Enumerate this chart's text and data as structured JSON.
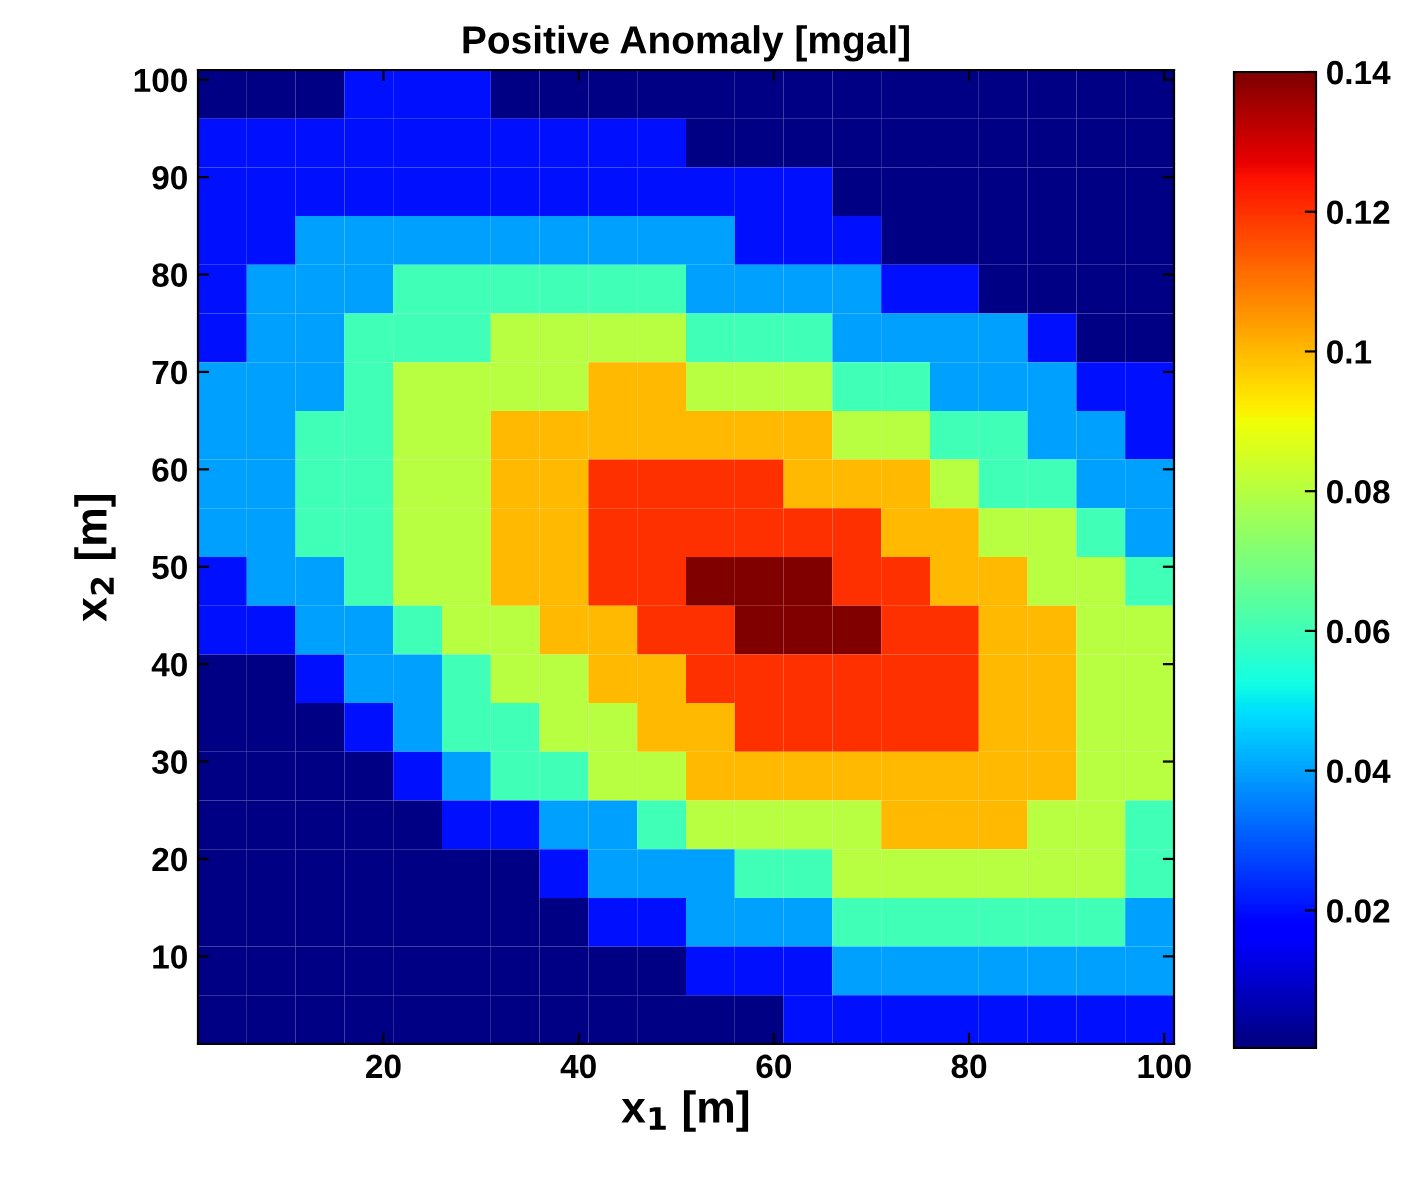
{
  "chart_data": {
    "type": "heatmap",
    "title": "Positive Anomaly [mgal]",
    "xlabel": "x$_{1}$ [m]",
    "ylabel": "x$_{2}$ [m]",
    "x": [
      3.5,
      8.5,
      13.5,
      18.5,
      23.5,
      28.5,
      33.5,
      38.5,
      43.5,
      48.5,
      53.5,
      58.5,
      63.5,
      68.5,
      73.5,
      78.5,
      83.5,
      88.5,
      93.5,
      98.5
    ],
    "y": [
      98.5,
      93.5,
      88.5,
      83.5,
      78.5,
      73.5,
      68.5,
      63.5,
      58.5,
      53.5,
      48.5,
      43.5,
      38.5,
      33.5,
      28.5,
      23.5,
      18.5,
      13.5,
      8.5,
      3.5
    ],
    "cells": [
      [
        0.001,
        0.001,
        0.001,
        0.02,
        0.02,
        0.02,
        0.001,
        0.001,
        0.001,
        0.001,
        0.001,
        0.001,
        0.001,
        0.001,
        0.001,
        0.001,
        0.001,
        0.001,
        0.001,
        0.001
      ],
      [
        0.02,
        0.02,
        0.02,
        0.02,
        0.02,
        0.02,
        0.02,
        0.02,
        0.02,
        0.02,
        0.001,
        0.001,
        0.001,
        0.001,
        0.001,
        0.001,
        0.001,
        0.001,
        0.001,
        0.001
      ],
      [
        0.02,
        0.02,
        0.02,
        0.02,
        0.02,
        0.02,
        0.02,
        0.02,
        0.02,
        0.02,
        0.02,
        0.02,
        0.02,
        0.001,
        0.001,
        0.001,
        0.001,
        0.001,
        0.001,
        0.001
      ],
      [
        0.02,
        0.02,
        0.04,
        0.04,
        0.04,
        0.04,
        0.04,
        0.04,
        0.04,
        0.04,
        0.04,
        0.02,
        0.02,
        0.02,
        0.001,
        0.001,
        0.001,
        0.001,
        0.001,
        0.001
      ],
      [
        0.02,
        0.04,
        0.04,
        0.04,
        0.06,
        0.06,
        0.06,
        0.06,
        0.06,
        0.06,
        0.04,
        0.04,
        0.04,
        0.04,
        0.02,
        0.02,
        0.001,
        0.001,
        0.001,
        0.001
      ],
      [
        0.02,
        0.04,
        0.04,
        0.06,
        0.06,
        0.06,
        0.08,
        0.08,
        0.08,
        0.08,
        0.06,
        0.06,
        0.06,
        0.04,
        0.04,
        0.04,
        0.04,
        0.02,
        0.001,
        0.001
      ],
      [
        0.04,
        0.04,
        0.04,
        0.06,
        0.08,
        0.08,
        0.08,
        0.08,
        0.1,
        0.1,
        0.08,
        0.08,
        0.08,
        0.06,
        0.06,
        0.04,
        0.04,
        0.04,
        0.02,
        0.02
      ],
      [
        0.04,
        0.04,
        0.06,
        0.06,
        0.08,
        0.08,
        0.1,
        0.1,
        0.1,
        0.1,
        0.1,
        0.1,
        0.1,
        0.08,
        0.08,
        0.06,
        0.06,
        0.04,
        0.04,
        0.02
      ],
      [
        0.04,
        0.04,
        0.06,
        0.06,
        0.08,
        0.08,
        0.1,
        0.1,
        0.12,
        0.12,
        0.12,
        0.12,
        0.1,
        0.1,
        0.1,
        0.08,
        0.06,
        0.06,
        0.04,
        0.04
      ],
      [
        0.04,
        0.04,
        0.06,
        0.06,
        0.08,
        0.08,
        0.1,
        0.1,
        0.12,
        0.12,
        0.12,
        0.12,
        0.12,
        0.12,
        0.1,
        0.1,
        0.08,
        0.08,
        0.06,
        0.04
      ],
      [
        0.02,
        0.04,
        0.04,
        0.06,
        0.08,
        0.08,
        0.1,
        0.1,
        0.12,
        0.12,
        0.14,
        0.14,
        0.14,
        0.12,
        0.12,
        0.1,
        0.1,
        0.08,
        0.08,
        0.06
      ],
      [
        0.02,
        0.02,
        0.04,
        0.04,
        0.06,
        0.08,
        0.08,
        0.1,
        0.1,
        0.12,
        0.12,
        0.14,
        0.14,
        0.14,
        0.12,
        0.12,
        0.1,
        0.1,
        0.08,
        0.08
      ],
      [
        0.001,
        0.001,
        0.02,
        0.04,
        0.04,
        0.06,
        0.08,
        0.08,
        0.1,
        0.1,
        0.12,
        0.12,
        0.12,
        0.12,
        0.12,
        0.12,
        0.1,
        0.1,
        0.08,
        0.08
      ],
      [
        0.001,
        0.001,
        0.001,
        0.02,
        0.04,
        0.06,
        0.06,
        0.08,
        0.08,
        0.1,
        0.1,
        0.12,
        0.12,
        0.12,
        0.12,
        0.12,
        0.1,
        0.1,
        0.08,
        0.08
      ],
      [
        0.001,
        0.001,
        0.001,
        0.001,
        0.02,
        0.04,
        0.06,
        0.06,
        0.08,
        0.08,
        0.1,
        0.1,
        0.1,
        0.1,
        0.1,
        0.1,
        0.1,
        0.1,
        0.08,
        0.08
      ],
      [
        0.001,
        0.001,
        0.001,
        0.001,
        0.001,
        0.02,
        0.02,
        0.04,
        0.04,
        0.06,
        0.08,
        0.08,
        0.08,
        0.08,
        0.1,
        0.1,
        0.1,
        0.08,
        0.08,
        0.06
      ],
      [
        0.001,
        0.001,
        0.001,
        0.001,
        0.001,
        0.001,
        0.001,
        0.02,
        0.04,
        0.04,
        0.04,
        0.06,
        0.06,
        0.08,
        0.08,
        0.08,
        0.08,
        0.08,
        0.08,
        0.06
      ],
      [
        0.001,
        0.001,
        0.001,
        0.001,
        0.001,
        0.001,
        0.001,
        0.001,
        0.02,
        0.02,
        0.04,
        0.04,
        0.04,
        0.06,
        0.06,
        0.06,
        0.06,
        0.06,
        0.06,
        0.04
      ],
      [
        0.001,
        0.001,
        0.001,
        0.001,
        0.001,
        0.001,
        0.001,
        0.001,
        0.001,
        0.001,
        0.02,
        0.02,
        0.02,
        0.04,
        0.04,
        0.04,
        0.04,
        0.04,
        0.04,
        0.04
      ],
      [
        0.001,
        0.001,
        0.001,
        0.001,
        0.001,
        0.001,
        0.001,
        0.001,
        0.001,
        0.001,
        0.001,
        0.001,
        0.02,
        0.02,
        0.02,
        0.02,
        0.02,
        0.02,
        0.02,
        0.02
      ]
    ],
    "xlim": [
      1,
      101
    ],
    "ylim": [
      1,
      101
    ],
    "xticks": [
      20,
      40,
      60,
      80,
      100
    ],
    "yticks": [
      10,
      20,
      30,
      40,
      50,
      60,
      70,
      80,
      90,
      100
    ],
    "clim": [
      0.0003,
      0.14
    ],
    "cticks": [
      0.02,
      0.04,
      0.06,
      0.08,
      0.1,
      0.12,
      0.14
    ],
    "grid": false
  }
}
